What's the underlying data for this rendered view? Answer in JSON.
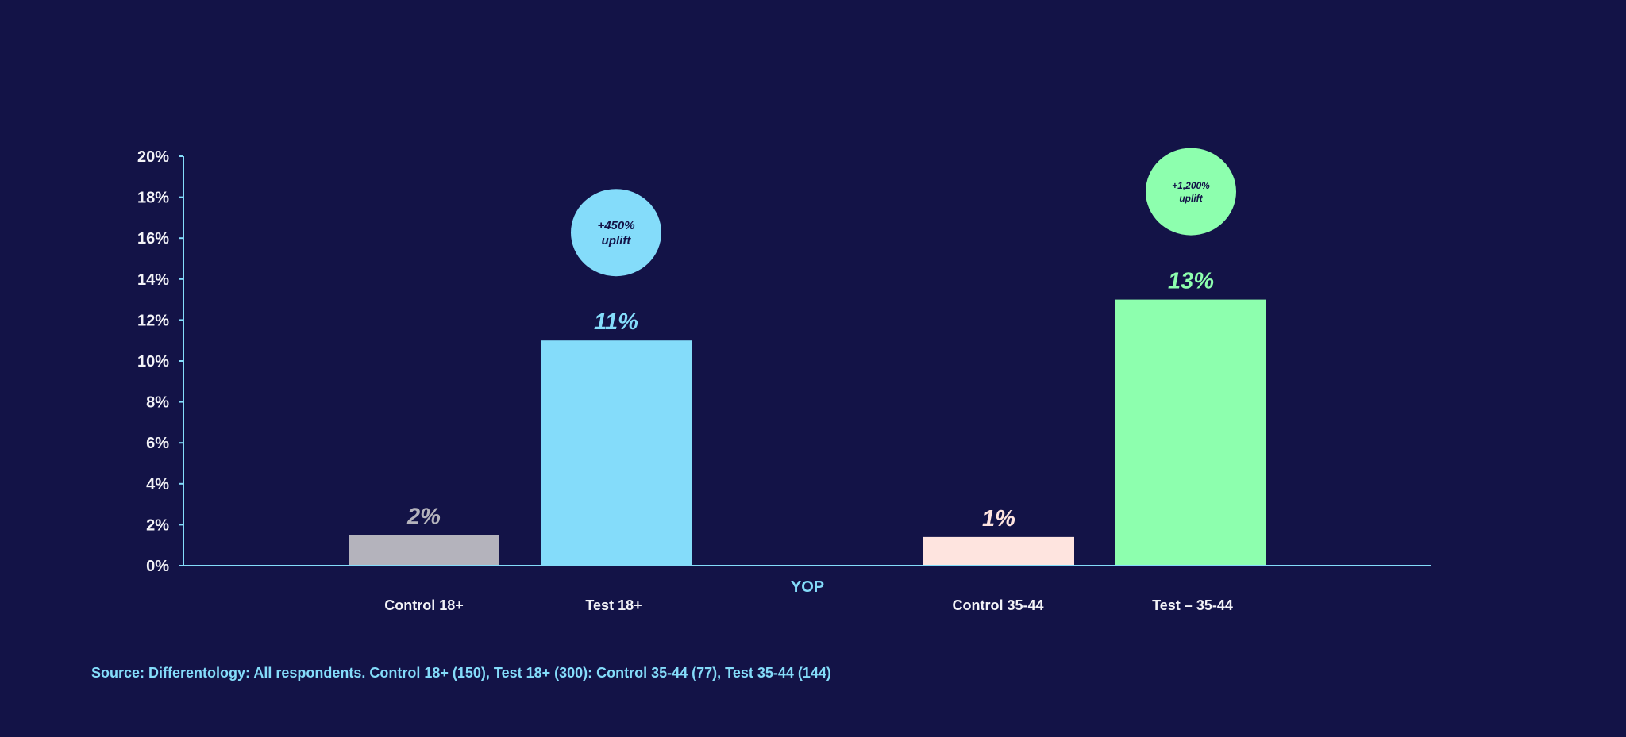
{
  "chart_data": {
    "type": "bar",
    "xlabel": "YOP",
    "ylabel": "",
    "ylim": [
      0,
      20
    ],
    "yticks": [
      "0%",
      "2%",
      "4%",
      "6%",
      "8%",
      "10%",
      "12%",
      "14%",
      "16%",
      "18%",
      "20%"
    ],
    "categories": [
      "Control 18+",
      "Test 18+",
      "Control 35-44",
      "Test – 35-44"
    ],
    "values": [
      1.5,
      11,
      1.4,
      13
    ],
    "value_labels": [
      "2%",
      "11%",
      "1%",
      "13%"
    ],
    "colors": [
      "#b4b3bc",
      "#84dcfa",
      "#fee4df",
      "#8dffae"
    ],
    "label_colors": [
      "#b4b3bc",
      "#84dcfa",
      "#fee4df",
      "#8dffae"
    ],
    "annotations": [
      {
        "bar": 1,
        "lines": [
          "+450%",
          "uplift"
        ],
        "color": "#84dcfa"
      },
      {
        "bar": 3,
        "lines": [
          "+1,200%",
          "uplift"
        ],
        "color": "#8dffae"
      }
    ],
    "grid": false,
    "legend": "none",
    "axis_color": "#84dcfa"
  },
  "source_note": "Source: Differentology: All respondents. Control 18+ (150), Test 18+ (300): Control 35-44 (77), Test 35-44 (144)",
  "colors": {
    "background": "#131347",
    "text": "#f3f3f7",
    "accent": "#84dcfa"
  }
}
